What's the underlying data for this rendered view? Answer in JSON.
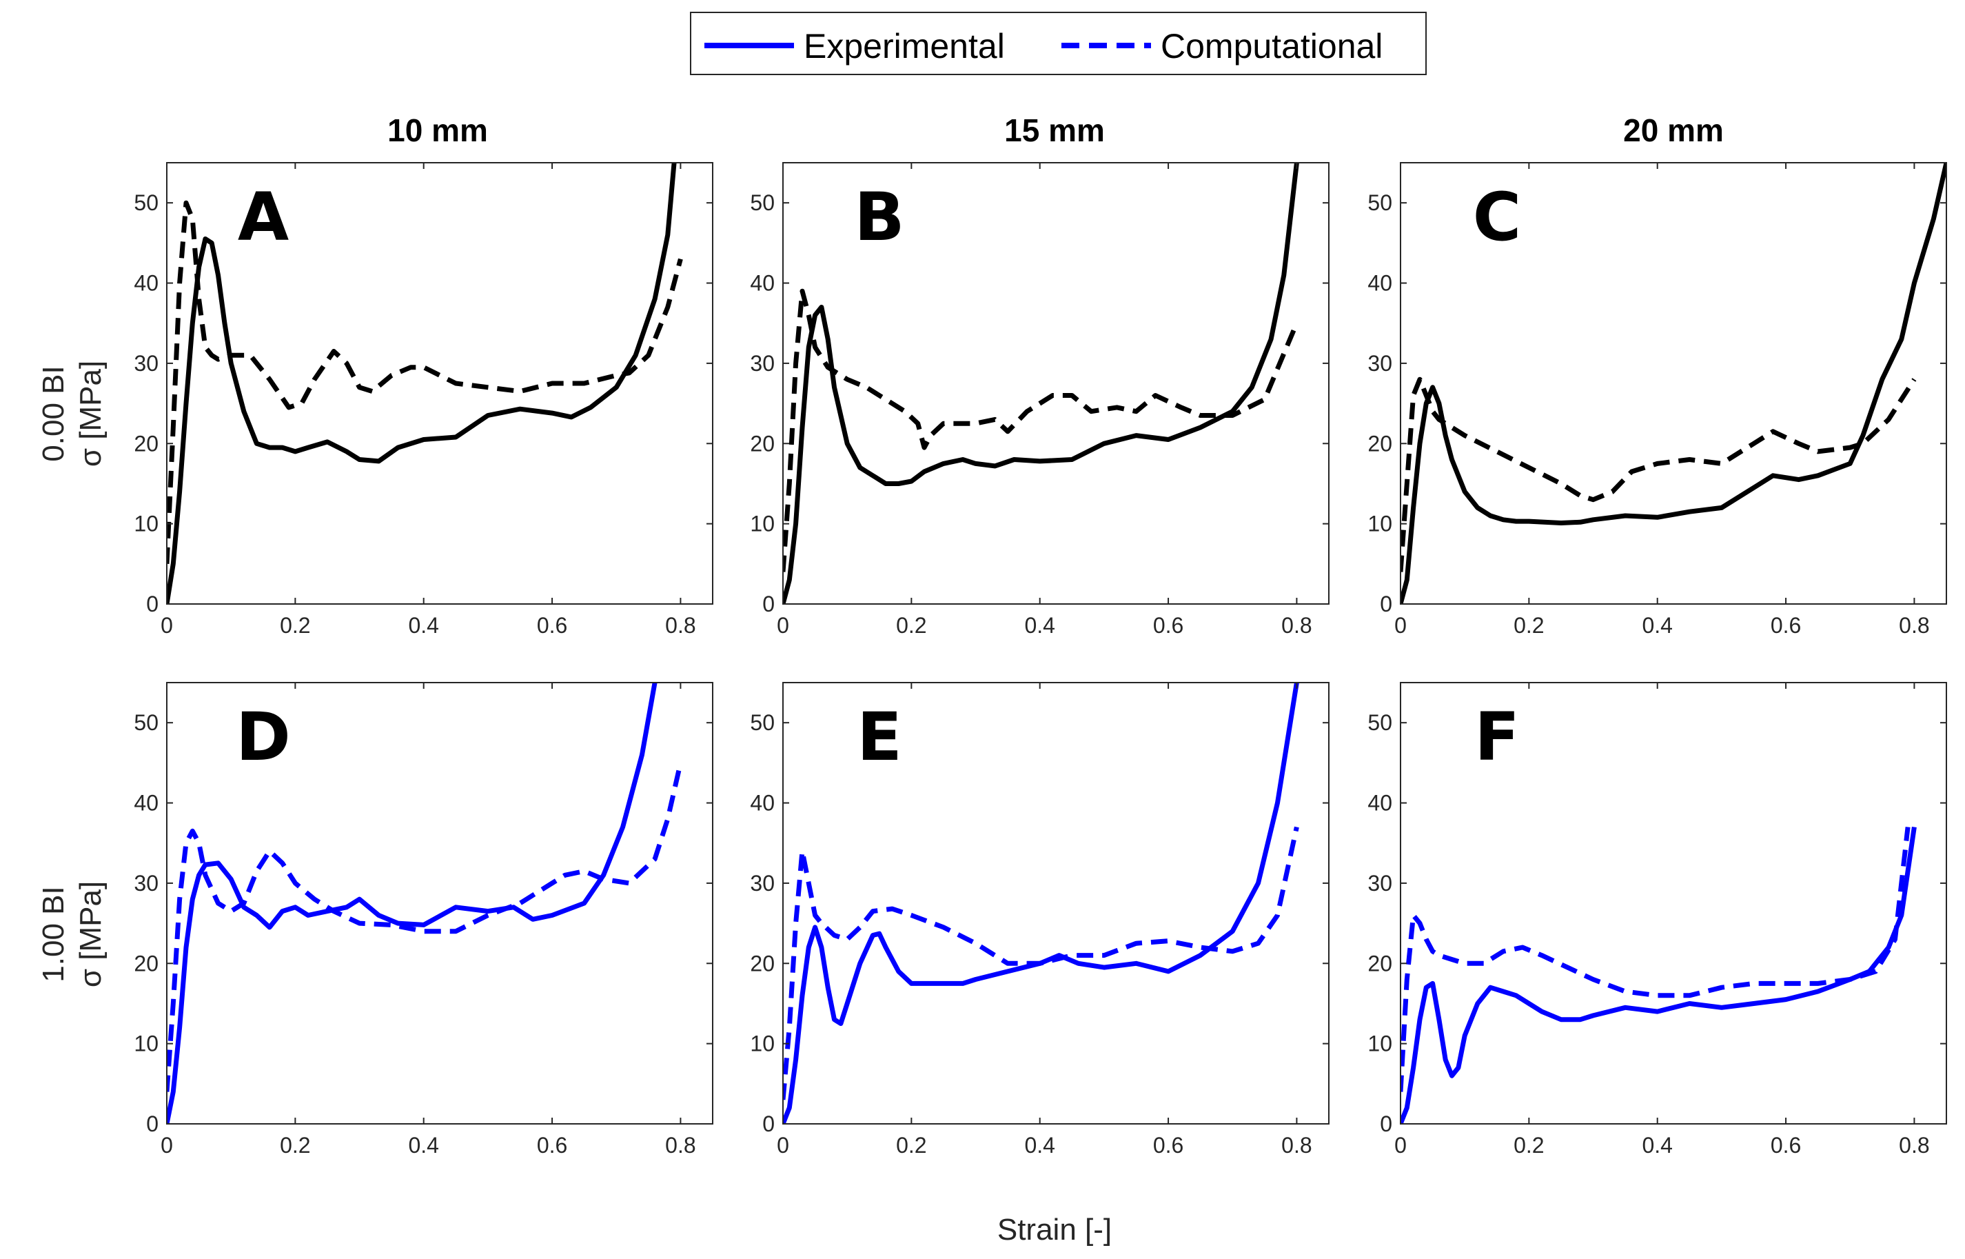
{
  "legend": {
    "experimental": "Experimental",
    "computational": "Computational"
  },
  "column_titles": [
    "10 mm",
    "15 mm",
    "20 mm"
  ],
  "row_labels": [
    {
      "line1": "0.00 BI",
      "line2": "σ [MPa]"
    },
    {
      "line1": "1.00 BI",
      "line2": "σ [MPa]"
    }
  ],
  "xlabel": "Strain [-]",
  "colors": {
    "row0": "#000000",
    "row1": "#0000ff"
  },
  "chart_data": [
    {
      "type": "line",
      "panel": "A",
      "row": 0,
      "col": 0,
      "xlim": [
        0,
        0.85
      ],
      "ylim": [
        0,
        55
      ],
      "xticks": [
        "0",
        "0.2",
        "0.4",
        "0.6",
        "0.8"
      ],
      "yticks": [
        "0",
        "10",
        "20",
        "30",
        "40",
        "50"
      ],
      "series": [
        {
          "name": "Experimental",
          "style": "solid",
          "x": [
            0,
            0.01,
            0.02,
            0.03,
            0.04,
            0.05,
            0.06,
            0.07,
            0.08,
            0.09,
            0.1,
            0.12,
            0.14,
            0.16,
            0.18,
            0.2,
            0.22,
            0.25,
            0.28,
            0.3,
            0.33,
            0.36,
            0.4,
            0.45,
            0.5,
            0.55,
            0.6,
            0.63,
            0.66,
            0.7,
            0.73,
            0.76,
            0.78,
            0.79
          ],
          "y": [
            0,
            5,
            14,
            25,
            35,
            42,
            45.5,
            45,
            41,
            35,
            30,
            24,
            20,
            19.5,
            19.5,
            19,
            19.5,
            20.2,
            19,
            18,
            17.8,
            19.5,
            20.5,
            20.8,
            23.5,
            24.3,
            23.8,
            23.3,
            24.5,
            27,
            31,
            38,
            46,
            55
          ]
        },
        {
          "name": "Computational",
          "style": "dashed",
          "x": [
            0,
            0.01,
            0.02,
            0.03,
            0.04,
            0.05,
            0.06,
            0.07,
            0.08,
            0.1,
            0.13,
            0.16,
            0.19,
            0.21,
            0.23,
            0.26,
            0.28,
            0.3,
            0.32,
            0.35,
            0.38,
            0.4,
            0.45,
            0.5,
            0.55,
            0.6,
            0.65,
            0.7,
            0.72,
            0.75,
            0.78,
            0.8
          ],
          "y": [
            5,
            22,
            40,
            50,
            48,
            38,
            32,
            31,
            30.5,
            31,
            31,
            28,
            24.5,
            25,
            28,
            31.5,
            30,
            27,
            26.5,
            28.5,
            29.5,
            29.5,
            27.5,
            27,
            26.5,
            27.5,
            27.5,
            28.5,
            28.8,
            31,
            37,
            43
          ]
        }
      ]
    },
    {
      "type": "line",
      "panel": "B",
      "row": 0,
      "col": 1,
      "xlim": [
        0,
        0.85
      ],
      "ylim": [
        0,
        55
      ],
      "xticks": [
        "0",
        "0.2",
        "0.4",
        "0.6",
        "0.8"
      ],
      "yticks": [
        "0",
        "10",
        "20",
        "30",
        "40",
        "50"
      ],
      "series": [
        {
          "name": "Experimental",
          "style": "solid",
          "x": [
            0,
            0.01,
            0.02,
            0.03,
            0.04,
            0.05,
            0.06,
            0.07,
            0.08,
            0.1,
            0.12,
            0.14,
            0.16,
            0.18,
            0.2,
            0.22,
            0.25,
            0.28,
            0.3,
            0.33,
            0.36,
            0.4,
            0.45,
            0.5,
            0.55,
            0.6,
            0.65,
            0.7,
            0.73,
            0.76,
            0.78,
            0.8
          ],
          "y": [
            0,
            3,
            10,
            22,
            32,
            36,
            37,
            33,
            27,
            20,
            17,
            16,
            15,
            15,
            15.3,
            16.5,
            17.5,
            18,
            17.5,
            17.2,
            18,
            17.8,
            18,
            20,
            21,
            20.5,
            22,
            24,
            27,
            33,
            41,
            55
          ]
        },
        {
          "name": "Computational",
          "style": "dashed",
          "x": [
            0,
            0.01,
            0.02,
            0.03,
            0.04,
            0.05,
            0.07,
            0.1,
            0.13,
            0.16,
            0.19,
            0.21,
            0.22,
            0.23,
            0.25,
            0.28,
            0.3,
            0.33,
            0.35,
            0.38,
            0.42,
            0.45,
            0.48,
            0.52,
            0.55,
            0.58,
            0.62,
            0.65,
            0.7,
            0.75,
            0.8
          ],
          "y": [
            4,
            15,
            30,
            39,
            36,
            32,
            29.5,
            28,
            27,
            25.5,
            24,
            22.5,
            19.5,
            21,
            22.5,
            22.5,
            22.5,
            23,
            21.5,
            24,
            26,
            26,
            24,
            24.5,
            24,
            26,
            24.5,
            23.5,
            23.5,
            25.5,
            35
          ]
        }
      ]
    },
    {
      "type": "line",
      "panel": "C",
      "row": 0,
      "col": 2,
      "xlim": [
        0,
        0.85
      ],
      "ylim": [
        0,
        55
      ],
      "xticks": [
        "0",
        "0.2",
        "0.4",
        "0.6",
        "0.8"
      ],
      "yticks": [
        "0",
        "10",
        "20",
        "30",
        "40",
        "50"
      ],
      "series": [
        {
          "name": "Experimental",
          "style": "solid",
          "x": [
            0,
            0.01,
            0.02,
            0.03,
            0.04,
            0.05,
            0.06,
            0.07,
            0.08,
            0.1,
            0.12,
            0.14,
            0.16,
            0.18,
            0.2,
            0.25,
            0.28,
            0.3,
            0.35,
            0.4,
            0.45,
            0.5,
            0.55,
            0.58,
            0.62,
            0.65,
            0.7,
            0.72,
            0.75,
            0.78,
            0.8,
            0.83,
            0.85
          ],
          "y": [
            0,
            3,
            12,
            20,
            25,
            27,
            25,
            21,
            18,
            14,
            12,
            11,
            10.5,
            10.3,
            10.3,
            10.1,
            10.2,
            10.5,
            11,
            10.8,
            11.5,
            12,
            14.5,
            16,
            15.5,
            16,
            17.5,
            21,
            28,
            33,
            40,
            48,
            55
          ]
        },
        {
          "name": "Computational",
          "style": "dashed",
          "x": [
            0,
            0.01,
            0.02,
            0.03,
            0.04,
            0.05,
            0.06,
            0.08,
            0.1,
            0.15,
            0.2,
            0.25,
            0.28,
            0.3,
            0.33,
            0.36,
            0.4,
            0.45,
            0.5,
            0.55,
            0.58,
            0.62,
            0.65,
            0.7,
            0.72,
            0.76,
            0.8
          ],
          "y": [
            4,
            15,
            26,
            28,
            26,
            24,
            23,
            22,
            21,
            19,
            17,
            15,
            13.5,
            13,
            14,
            16.5,
            17.5,
            18,
            17.5,
            20,
            21.5,
            20,
            19,
            19.5,
            20,
            23,
            28
          ]
        }
      ]
    },
    {
      "type": "line",
      "panel": "D",
      "row": 1,
      "col": 0,
      "xlim": [
        0,
        0.85
      ],
      "ylim": [
        0,
        55
      ],
      "xticks": [
        "0",
        "0.2",
        "0.4",
        "0.6",
        "0.8"
      ],
      "yticks": [
        "0",
        "10",
        "20",
        "30",
        "40",
        "50"
      ],
      "series": [
        {
          "name": "Experimental",
          "style": "solid",
          "x": [
            0,
            0.01,
            0.02,
            0.03,
            0.04,
            0.05,
            0.06,
            0.08,
            0.1,
            0.12,
            0.14,
            0.16,
            0.18,
            0.2,
            0.22,
            0.25,
            0.28,
            0.3,
            0.33,
            0.36,
            0.4,
            0.45,
            0.5,
            0.54,
            0.57,
            0.6,
            0.65,
            0.68,
            0.71,
            0.74,
            0.76
          ],
          "y": [
            0,
            4,
            12,
            22,
            28,
            31,
            32.3,
            32.5,
            30.5,
            27,
            26,
            24.5,
            26.5,
            27,
            26,
            26.5,
            27,
            28,
            26,
            25,
            24.8,
            27,
            26.5,
            27,
            25.5,
            26,
            27.5,
            31,
            37,
            46,
            55
          ]
        },
        {
          "name": "Computational",
          "style": "dashed",
          "x": [
            0,
            0.01,
            0.02,
            0.03,
            0.04,
            0.05,
            0.06,
            0.08,
            0.1,
            0.12,
            0.14,
            0.16,
            0.18,
            0.2,
            0.23,
            0.26,
            0.3,
            0.35,
            0.4,
            0.45,
            0.5,
            0.55,
            0.6,
            0.62,
            0.65,
            0.68,
            0.72,
            0.76,
            0.78,
            0.8
          ],
          "y": [
            4,
            15,
            28,
            35,
            36.5,
            35,
            31,
            27.5,
            26.5,
            27.5,
            31.5,
            34,
            32.5,
            30,
            28,
            26.5,
            25,
            24.8,
            24,
            24,
            26,
            27.5,
            30,
            31,
            31.5,
            30.5,
            30,
            33,
            38,
            45
          ]
        }
      ]
    },
    {
      "type": "line",
      "panel": "E",
      "row": 1,
      "col": 1,
      "xlim": [
        0,
        0.85
      ],
      "ylim": [
        0,
        55
      ],
      "xticks": [
        "0",
        "0.2",
        "0.4",
        "0.6",
        "0.8"
      ],
      "yticks": [
        "0",
        "10",
        "20",
        "30",
        "40",
        "50"
      ],
      "series": [
        {
          "name": "Experimental",
          "style": "solid",
          "x": [
            0,
            0.01,
            0.02,
            0.03,
            0.04,
            0.05,
            0.06,
            0.07,
            0.08,
            0.09,
            0.1,
            0.12,
            0.14,
            0.15,
            0.16,
            0.18,
            0.2,
            0.25,
            0.28,
            0.3,
            0.35,
            0.4,
            0.43,
            0.46,
            0.5,
            0.55,
            0.6,
            0.65,
            0.7,
            0.74,
            0.77,
            0.8
          ],
          "y": [
            0,
            2,
            8,
            16,
            22,
            24.5,
            22,
            17,
            13,
            12.5,
            15,
            20,
            23.5,
            23.7,
            22,
            19,
            17.5,
            17.5,
            17.5,
            18,
            19,
            20,
            21,
            20,
            19.5,
            20,
            19,
            21,
            24,
            30,
            40,
            55
          ]
        },
        {
          "name": "Computational",
          "style": "dashed",
          "x": [
            0,
            0.01,
            0.02,
            0.03,
            0.04,
            0.05,
            0.06,
            0.08,
            0.1,
            0.12,
            0.14,
            0.17,
            0.2,
            0.25,
            0.3,
            0.35,
            0.4,
            0.45,
            0.5,
            0.55,
            0.6,
            0.65,
            0.7,
            0.74,
            0.77,
            0.8
          ],
          "y": [
            3,
            12,
            25,
            34,
            30,
            26,
            25,
            23.5,
            23,
            24.5,
            26.5,
            26.8,
            26,
            24.5,
            22.5,
            20,
            20,
            21,
            21,
            22.5,
            22.8,
            22,
            21.5,
            22.5,
            26,
            37
          ]
        }
      ]
    },
    {
      "type": "line",
      "panel": "F",
      "row": 1,
      "col": 2,
      "xlim": [
        0,
        0.85
      ],
      "ylim": [
        0,
        55
      ],
      "xticks": [
        "0",
        "0.2",
        "0.4",
        "0.6",
        "0.8"
      ],
      "yticks": [
        "0",
        "10",
        "20",
        "30",
        "40",
        "50"
      ],
      "series": [
        {
          "name": "Experimental",
          "style": "solid",
          "x": [
            0,
            0.01,
            0.02,
            0.03,
            0.04,
            0.05,
            0.06,
            0.07,
            0.08,
            0.09,
            0.1,
            0.12,
            0.14,
            0.16,
            0.18,
            0.2,
            0.22,
            0.25,
            0.28,
            0.3,
            0.35,
            0.4,
            0.45,
            0.5,
            0.55,
            0.6,
            0.65,
            0.7,
            0.73,
            0.76,
            0.78,
            0.8
          ],
          "y": [
            0,
            2,
            7,
            13,
            17,
            17.5,
            13,
            8,
            6,
            7,
            11,
            15,
            17,
            16.5,
            16,
            15,
            14,
            13,
            13,
            13.5,
            14.5,
            14,
            15,
            14.5,
            15,
            15.5,
            16.5,
            18,
            19,
            22,
            26,
            37
          ]
        },
        {
          "name": "Computational",
          "style": "dashed",
          "x": [
            0,
            0.01,
            0.02,
            0.03,
            0.04,
            0.05,
            0.06,
            0.08,
            0.1,
            0.13,
            0.16,
            0.19,
            0.22,
            0.26,
            0.3,
            0.35,
            0.4,
            0.45,
            0.5,
            0.55,
            0.6,
            0.65,
            0.7,
            0.74,
            0.77,
            0.79
          ],
          "y": [
            4,
            18,
            26,
            25,
            23,
            21.5,
            21,
            20.5,
            20,
            20,
            21.5,
            22,
            21,
            19.5,
            18,
            16.5,
            16,
            16,
            17,
            17.5,
            17.5,
            17.5,
            18,
            19,
            23,
            37
          ]
        }
      ]
    }
  ]
}
